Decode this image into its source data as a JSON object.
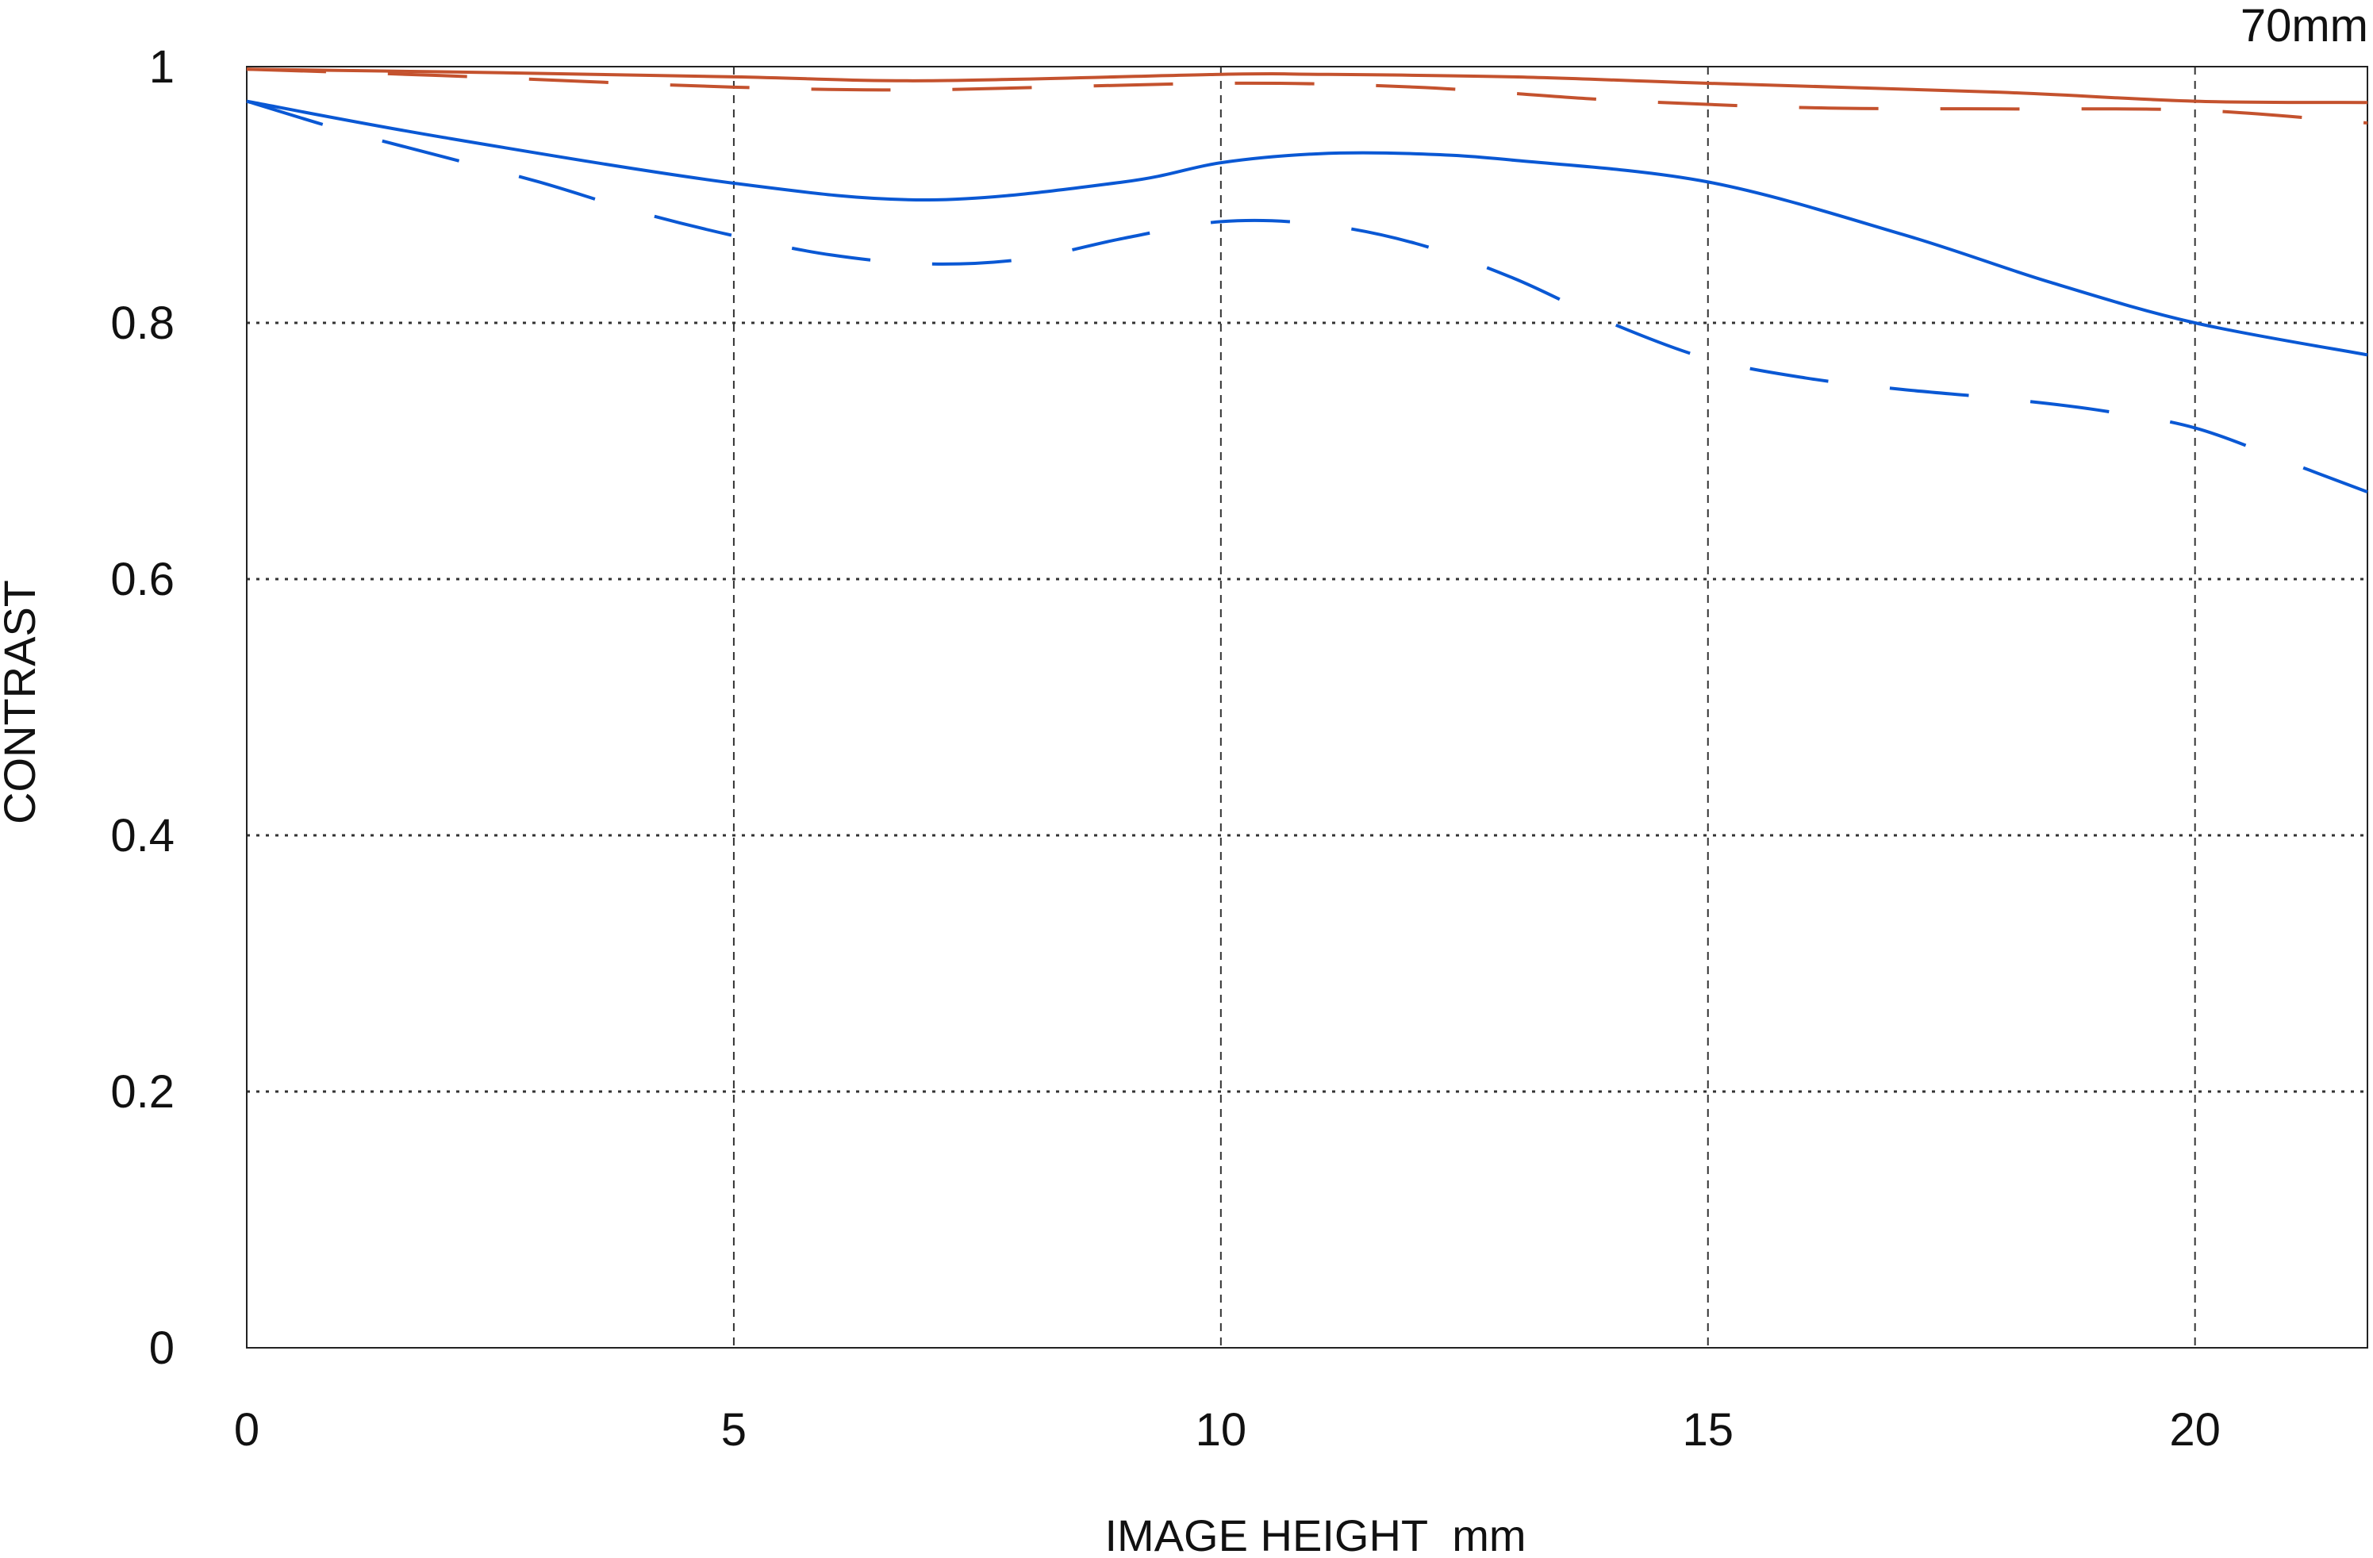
{
  "chart_data": {
    "type": "line",
    "title": "70mm",
    "xlabel": "IMAGE HEIGHT  mm",
    "ylabel": "CONTRAST",
    "xlim": [
      0,
      21.77
    ],
    "ylim": [
      0,
      1
    ],
    "xticks": [
      "0",
      "5",
      "10",
      "15",
      "20"
    ],
    "xtick_values": [
      0,
      5,
      10,
      15,
      20
    ],
    "yticks": [
      "0",
      "0.2",
      "0.4",
      "0.6",
      "0.8",
      "1"
    ],
    "ytick_values": [
      0,
      0.2,
      0.4,
      0.6,
      0.8,
      1
    ],
    "grid": true,
    "series": [
      {
        "color": "#c4522e",
        "style": "solid",
        "x": [
          0,
          2,
          5,
          7,
          10,
          11,
          13,
          15,
          18,
          20,
          21.77
        ],
        "y": [
          0.998,
          0.996,
          0.992,
          0.989,
          0.994,
          0.994,
          0.992,
          0.987,
          0.98,
          0.973,
          0.972
        ]
      },
      {
        "color": "#c4522e",
        "style": "dashed",
        "x": [
          0,
          2,
          5,
          7,
          10,
          12,
          14,
          16,
          18,
          20,
          21.77
        ],
        "y": [
          0.998,
          0.993,
          0.984,
          0.982,
          0.987,
          0.984,
          0.974,
          0.968,
          0.967,
          0.966,
          0.956
        ]
      },
      {
        "color": "#0a58d4",
        "style": "solid",
        "x": [
          0,
          2,
          5,
          7,
          9,
          10,
          11,
          12,
          13,
          15,
          17,
          18.5,
          20,
          21.77
        ],
        "y": [
          0.973,
          0.945,
          0.909,
          0.896,
          0.91,
          0.925,
          0.932,
          0.932,
          0.927,
          0.91,
          0.869,
          0.832,
          0.8,
          0.775
        ]
      },
      {
        "color": "#0a58d4",
        "style": "dashed",
        "x": [
          0,
          1,
          2,
          3,
          4,
          5,
          6,
          7,
          8,
          9,
          10,
          11,
          12,
          13,
          14,
          15,
          16,
          17,
          18,
          19,
          20,
          21,
          21.77
        ],
        "y": [
          0.973,
          0.95,
          0.93,
          0.91,
          0.887,
          0.868,
          0.853,
          0.846,
          0.85,
          0.866,
          0.879,
          0.877,
          0.862,
          0.835,
          0.8,
          0.772,
          0.757,
          0.748,
          0.741,
          0.732,
          0.718,
          0.69,
          0.668
        ]
      }
    ]
  }
}
